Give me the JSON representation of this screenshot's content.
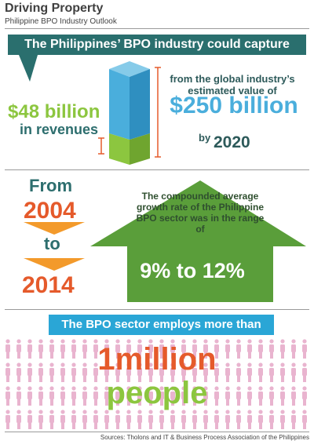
{
  "header": {
    "title": "Driving Property",
    "subtitle": "Philippine BPO Industry Outlook"
  },
  "section1": {
    "banner": "The Philippines’ BPO industry could capture",
    "amount": "$48 billion",
    "amount_sub": "in revenues",
    "from_global": "from the global industry’s estimated value of",
    "total": "$250 billion",
    "by_label": "by",
    "by_year": "2020",
    "captured_fraction": 0.192
  },
  "section2": {
    "from_label": "From",
    "start_year": "2004",
    "to_label": "to",
    "end_year": "2014",
    "description": "The compounded average growth rate of the Philippine BPO sector was in the range of",
    "rate": "9% to 12%"
  },
  "section3": {
    "banner": "The BPO sector employs more than",
    "count": "1million",
    "unit": "people"
  },
  "footer": {
    "sources": "Sources: Tholons and IT & Business Process Association of the Philippines"
  },
  "colors": {
    "teal": "#2a6f6e",
    "green": "#8cc63f",
    "blue": "#4aaedc",
    "orange": "#e55a2b",
    "pink": "#e9b4cf",
    "arrow_green": "#5a9e3a"
  }
}
